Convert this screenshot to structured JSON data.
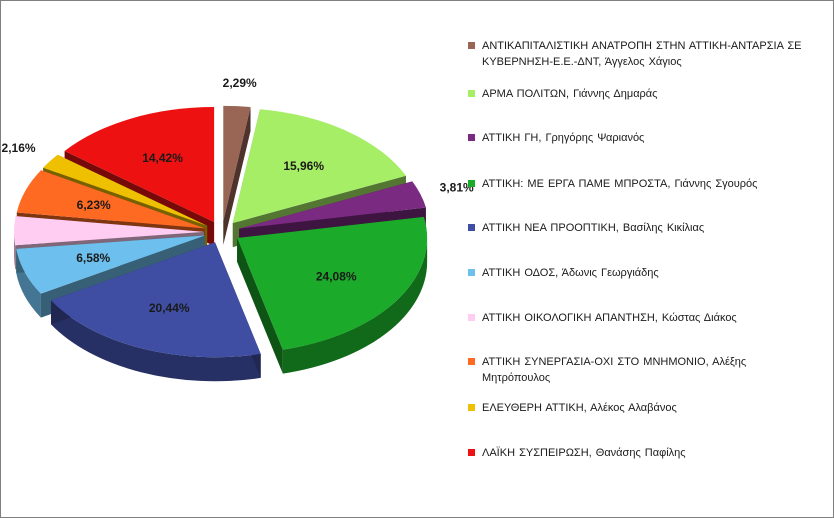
{
  "chart_data": {
    "type": "pie",
    "legend_position": "right",
    "slices": [
      {
        "label": "ΑΝΤΙΚΑΠΙΤΑΛΙΣΤΙΚΗ  ΑΝΑΤΡΟΠΗ ΣΤΗΝ ΑΤΤΙΚΗ-ΑΝΤΑΡΣΙΑ ΣΕ ΚΥΒΕΡΝΗΣΗ-Ε.Ε.-ΔΝΤ,  Άγγελος Χάγιος",
        "value": 2.29,
        "value_label": "2,29%",
        "color": "#996655"
      },
      {
        "label": "ΑΡΜΑ ΠΟΛΙΤΩΝ,  Γιάννης Δημαράς",
        "value": 15.96,
        "value_label": "15,96%",
        "color": "#a6ee66"
      },
      {
        "label": "ΑΤΤΙΚΗ ΓΗ,  Γρηγόρης Ψαριανός",
        "value": 3.81,
        "value_label": "3,81%",
        "color": "#7a2a80"
      },
      {
        "label": "ΑΤΤΙΚΗ: ΜΕ ΕΡΓΑ ΠΑΜΕ ΜΠΡΟΣΤΑ,  Γιάννης Σγουρός",
        "value": 24.08,
        "value_label": "24,08%",
        "color": "#1caa2a"
      },
      {
        "label": "ΑΤΤΙΚΗ ΝΕΑ  ΠΡΟΟΠΤΙΚΗ,  Βασίλης Κικίλιας",
        "value": 20.44,
        "value_label": "20,44%",
        "color": "#3f4ea2"
      },
      {
        "label": "ΑΤΤΙΚΗ ΟΔΟΣ,  Άδωνις Γεωργιάδης",
        "value": 6.58,
        "value_label": "6,58%",
        "color": "#6dbfed"
      },
      {
        "label": "ΑΤΤΙΚΗ ΟΙΚΟΛΟΓΙΚΗ  ΑΠΑΝΤΗΣΗ,  Κώστας Διάκος",
        "value": 4.04,
        "value_label": "4,04%",
        "color": "#ffccf2"
      },
      {
        "label": "ΑΤΤΙΚΗ ΣΥΝΕΡΓΑΣΙΑ-ΟΧΙ  ΣΤΟ ΜΝΗΜΟΝΙΟ,  Αλέξης Μητρόπουλος",
        "value": 6.23,
        "value_label": "6,23%",
        "color": "#ff6a22"
      },
      {
        "label": "ΕΛΕΥΘΕΡΗ  ΑΤΤΙΚΗ,  Αλέκος Αλαβάνος",
        "value": 2.16,
        "value_label": "2,16%",
        "color": "#eec000"
      },
      {
        "label": "ΛΑΪΚΗ ΣΥΣΠΕΙΡΩΣΗ,  Θανάσης Παφίλης",
        "value": 14.42,
        "value_label": "14,42%",
        "color": "#ee1111"
      }
    ]
  }
}
